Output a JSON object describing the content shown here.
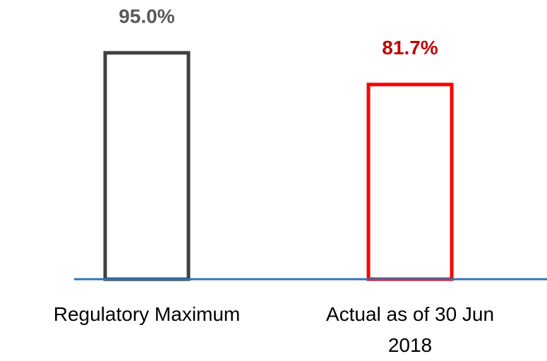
{
  "chart_data": {
    "type": "bar",
    "categories": [
      "Regulatory Maximum",
      "Actual as of 30 Jun 2018"
    ],
    "values": [
      95.0,
      81.7
    ],
    "value_labels": [
      "95.0%",
      "81.7%"
    ],
    "colors": [
      "#404040",
      "#ff0000"
    ],
    "value_label_colors": [
      "#595959",
      "#c00000"
    ],
    "ylim": [
      0,
      100
    ]
  }
}
